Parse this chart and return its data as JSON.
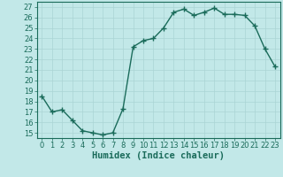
{
  "x": [
    0,
    1,
    2,
    3,
    4,
    5,
    6,
    7,
    8,
    9,
    10,
    11,
    12,
    13,
    14,
    15,
    16,
    17,
    18,
    19,
    20,
    21,
    22,
    23
  ],
  "y": [
    18.5,
    17.0,
    17.2,
    16.2,
    15.2,
    15.0,
    14.8,
    15.0,
    17.3,
    23.2,
    23.8,
    24.0,
    25.0,
    26.5,
    26.8,
    26.2,
    26.5,
    26.9,
    26.3,
    26.3,
    26.2,
    25.2,
    23.0,
    21.3
  ],
  "line_color": "#1a6b5a",
  "marker": "+",
  "marker_size": 4,
  "marker_color": "#1a6b5a",
  "bg_color": "#c2e8e8",
  "grid_color": "#aad4d4",
  "xlabel": "Humidex (Indice chaleur)",
  "xlim": [
    -0.5,
    23.5
  ],
  "ylim": [
    14.5,
    27.5
  ],
  "yticks": [
    15,
    16,
    17,
    18,
    19,
    20,
    21,
    22,
    23,
    24,
    25,
    26,
    27
  ],
  "xticks": [
    0,
    1,
    2,
    3,
    4,
    5,
    6,
    7,
    8,
    9,
    10,
    11,
    12,
    13,
    14,
    15,
    16,
    17,
    18,
    19,
    20,
    21,
    22,
    23
  ],
  "tick_label_fontsize": 6.0,
  "xlabel_fontsize": 7.5,
  "axis_color": "#1a6b5a",
  "tick_color": "#1a6b5a",
  "linewidth": 1.0
}
